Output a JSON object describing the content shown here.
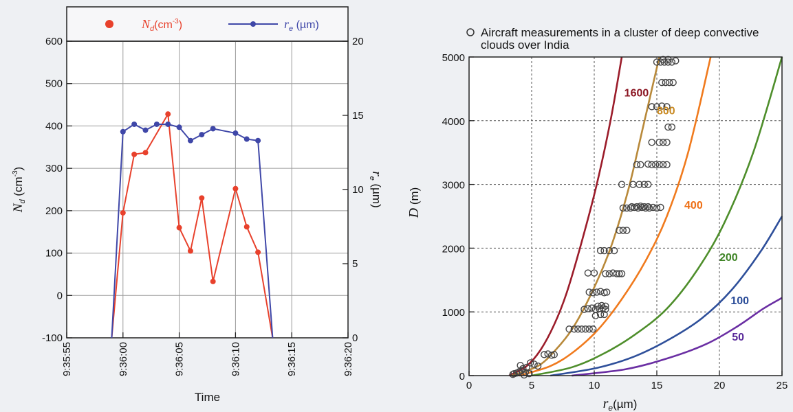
{
  "chart_data": [
    {
      "type": "line",
      "xlabel": "Time",
      "ylabel_left": "N_d (cm^-3)",
      "ylabel_left_parts": {
        "main": "N",
        "sub": "d",
        "unit": " (cm",
        "sup": "-3",
        "close": ")"
      },
      "ylabel_right": "r_e (µm)",
      "ylabel_right_parts": {
        "main": "r",
        "sub": "e",
        "unit": " (µm)"
      },
      "x_ticks": [
        "9:35:55",
        "9:36:00",
        "9:36:05",
        "9:36:10",
        "9:36:15",
        "9:36:20"
      ],
      "xlim_seconds": [
        -5,
        20
      ],
      "ylim_left": [
        -100,
        600
      ],
      "y_ticks_left": [
        "-100",
        "0",
        "100",
        "200",
        "300",
        "400",
        "500",
        "600"
      ],
      "ylim_right": [
        0,
        20
      ],
      "y_ticks_right": [
        "0",
        "5",
        "10",
        "15",
        "20"
      ],
      "grid": true,
      "legend_position": "top",
      "legend": [
        {
          "label": "N_d(cm^-3)",
          "main": "N",
          "sub": "d",
          "rest": "(cm",
          "sup": "-3",
          "close": ")"
        },
        {
          "label": "r_e (µm)",
          "main": "r",
          "sub": "e",
          "rest": " (µm)"
        }
      ],
      "series": [
        {
          "name": "N_d(cm^-3)",
          "axis": "left",
          "color": "#e8412c",
          "x": [
            -1,
            0,
            1,
            2,
            4,
            5,
            6,
            7,
            8,
            10,
            11,
            12,
            13.3
          ],
          "y": [
            -100,
            195,
            333,
            337,
            428,
            160,
            105,
            230,
            33,
            252,
            162,
            102,
            -100
          ],
          "markers": [
            false,
            true,
            true,
            true,
            true,
            true,
            true,
            true,
            true,
            true,
            true,
            true,
            false
          ]
        },
        {
          "name": "r_e (µm)",
          "axis": "right",
          "color": "#3f47a8",
          "x": [
            -1,
            0,
            1,
            2,
            3,
            4,
            5,
            6,
            7,
            8,
            10,
            11,
            12,
            13.3
          ],
          "y": [
            0,
            13.9,
            14.4,
            14.0,
            14.4,
            14.4,
            14.2,
            13.3,
            13.7,
            14.1,
            13.8,
            13.4,
            13.3,
            0
          ],
          "markers": [
            false,
            true,
            true,
            true,
            true,
            true,
            true,
            true,
            true,
            true,
            true,
            true,
            true,
            false
          ]
        }
      ]
    },
    {
      "type": "scatter",
      "title": "Aircraft measurements in a cluster of deep convective clouds over India",
      "title_lines": [
        "Aircraft measurements in a cluster of deep convective",
        "clouds over India"
      ],
      "xlabel": "r_e(µm)",
      "xlabel_parts": {
        "main": "r",
        "sub": "e",
        "unit": "(µm)"
      },
      "ylabel": "D (m)",
      "ylabel_parts": {
        "main": "D",
        "unit": " (m)"
      },
      "xlim": [
        0,
        25
      ],
      "ylim": [
        0,
        5000
      ],
      "x_ticks": [
        "0",
        "5",
        "10",
        "15",
        "20",
        "25"
      ],
      "y_ticks": [
        "0",
        "1000",
        "2000",
        "3000",
        "4000",
        "5000"
      ],
      "grid": true,
      "curves": [
        {
          "label": "1600",
          "color": "#9b1c2a",
          "label_color": "#8a1421",
          "label_at": [
            12.4,
            4380
          ],
          "points": [
            [
              3.2,
              0
            ],
            [
              4.6,
              150
            ],
            [
              5.7,
              400
            ],
            [
              6.8,
              800
            ],
            [
              7.8,
              1300
            ],
            [
              9.0,
              2100
            ],
            [
              10.2,
              3000
            ],
            [
              11.3,
              4000
            ],
            [
              12.2,
              5000
            ]
          ]
        },
        {
          "label": "800",
          "color": "#b8893a",
          "label_color": "#c98a22",
          "label_at": [
            15.0,
            4100
          ],
          "points": [
            [
              3.4,
              0
            ],
            [
              5.5,
              150
            ],
            [
              6.9,
              400
            ],
            [
              8.3,
              750
            ],
            [
              9.8,
              1300
            ],
            [
              11.3,
              2000
            ],
            [
              12.7,
              2900
            ],
            [
              13.9,
              3900
            ],
            [
              15.2,
              5000
            ]
          ]
        },
        {
          "label": "400",
          "color": "#f07a1d",
          "label_color": "#ee6f14",
          "label_at": [
            17.2,
            2620
          ],
          "points": [
            [
              4.0,
              0
            ],
            [
              6.5,
              150
            ],
            [
              8.4,
              380
            ],
            [
              10.3,
              720
            ],
            [
              12.2,
              1200
            ],
            [
              14.1,
              1800
            ],
            [
              15.8,
              2500
            ],
            [
              17.5,
              3500
            ],
            [
              19.3,
              5000
            ]
          ]
        },
        {
          "label": "200",
          "color": "#4e8e2b",
          "label_color": "#3e8425",
          "label_at": [
            20.0,
            1800
          ],
          "points": [
            [
              5.0,
              0
            ],
            [
              8.2,
              130
            ],
            [
              10.8,
              350
            ],
            [
              13.3,
              650
            ],
            [
              15.8,
              1050
            ],
            [
              18.2,
              1650
            ],
            [
              20.4,
              2400
            ],
            [
              22.7,
              3500
            ],
            [
              25.0,
              5000
            ]
          ]
        },
        {
          "label": "100",
          "color": "#2e4f9a",
          "label_color": "#2a4c98",
          "label_at": [
            20.9,
            1120
          ],
          "points": [
            [
              6.5,
              0
            ],
            [
              10.2,
              120
            ],
            [
              13.2,
              300
            ],
            [
              16.0,
              570
            ],
            [
              18.6,
              900
            ],
            [
              21.0,
              1350
            ],
            [
              23.3,
              1950
            ],
            [
              25.0,
              2500
            ]
          ]
        },
        {
          "label": "50",
          "color": "#6a2ea3",
          "label_color": "#5a2a9a",
          "label_at": [
            21.0,
            550
          ],
          "points": [
            [
              8.2,
              0
            ],
            [
              12.5,
              100
            ],
            [
              16.0,
              280
            ],
            [
              19.0,
              500
            ],
            [
              21.5,
              780
            ],
            [
              23.5,
              1050
            ],
            [
              25.0,
              1220
            ]
          ]
        }
      ],
      "points": [
        [
          3.5,
          20
        ],
        [
          3.8,
          40
        ],
        [
          4.0,
          60
        ],
        [
          4.2,
          80
        ],
        [
          4.5,
          50
        ],
        [
          4.8,
          30
        ],
        [
          4.3,
          110
        ],
        [
          4.6,
          130
        ],
        [
          4.1,
          160
        ],
        [
          5.2,
          180
        ],
        [
          4.9,
          200
        ],
        [
          5.5,
          150
        ],
        [
          3.6,
          30
        ],
        [
          4.4,
          10
        ],
        [
          6.0,
          330
        ],
        [
          6.3,
          340
        ],
        [
          6.6,
          320
        ],
        [
          6.8,
          330
        ],
        [
          8.0,
          730
        ],
        [
          8.4,
          730
        ],
        [
          8.7,
          730
        ],
        [
          9.0,
          730
        ],
        [
          9.3,
          730
        ],
        [
          9.6,
          730
        ],
        [
          9.9,
          730
        ],
        [
          9.2,
          1040
        ],
        [
          9.5,
          1050
        ],
        [
          9.8,
          1060
        ],
        [
          10.1,
          1040
        ],
        [
          10.4,
          1050
        ],
        [
          10.7,
          1060
        ],
        [
          10.9,
          1040
        ],
        [
          10.3,
          1090
        ],
        [
          10.6,
          1100
        ],
        [
          10.9,
          1090
        ],
        [
          10.1,
          940
        ],
        [
          10.5,
          960
        ],
        [
          10.8,
          960
        ],
        [
          9.6,
          1310
        ],
        [
          9.9,
          1300
        ],
        [
          10.2,
          1310
        ],
        [
          10.5,
          1320
        ],
        [
          10.8,
          1300
        ],
        [
          11.0,
          1310
        ],
        [
          9.5,
          1610
        ],
        [
          10.0,
          1610
        ],
        [
          10.9,
          1600
        ],
        [
          11.2,
          1600
        ],
        [
          11.5,
          1610
        ],
        [
          11.8,
          1600
        ],
        [
          12.0,
          1600
        ],
        [
          12.2,
          1600
        ],
        [
          10.5,
          1960
        ],
        [
          10.8,
          1960
        ],
        [
          11.2,
          1960
        ],
        [
          11.6,
          1960
        ],
        [
          12.0,
          2280
        ],
        [
          12.3,
          2280
        ],
        [
          12.6,
          2280
        ],
        [
          12.3,
          2630
        ],
        [
          12.6,
          2630
        ],
        [
          12.9,
          2630
        ],
        [
          13.2,
          2640
        ],
        [
          13.5,
          2630
        ],
        [
          13.8,
          2640
        ],
        [
          14.1,
          2630
        ],
        [
          14.4,
          2630
        ],
        [
          14.7,
          2640
        ],
        [
          15.0,
          2630
        ],
        [
          15.3,
          2640
        ],
        [
          13.0,
          2650
        ],
        [
          13.4,
          2650
        ],
        [
          13.7,
          2660
        ],
        [
          14.0,
          2650
        ],
        [
          14.3,
          2650
        ],
        [
          12.2,
          3000
        ],
        [
          13.1,
          3000
        ],
        [
          13.6,
          3000
        ],
        [
          14.0,
          3000
        ],
        [
          14.3,
          3000
        ],
        [
          13.4,
          3310
        ],
        [
          13.7,
          3310
        ],
        [
          14.3,
          3320
        ],
        [
          14.6,
          3310
        ],
        [
          14.9,
          3310
        ],
        [
          15.2,
          3310
        ],
        [
          15.5,
          3310
        ],
        [
          15.8,
          3310
        ],
        [
          14.6,
          3660
        ],
        [
          15.2,
          3660
        ],
        [
          15.5,
          3660
        ],
        [
          15.8,
          3660
        ],
        [
          15.9,
          3900
        ],
        [
          16.2,
          3900
        ],
        [
          14.6,
          4220
        ],
        [
          15.0,
          4220
        ],
        [
          15.4,
          4230
        ],
        [
          15.8,
          4220
        ],
        [
          15.4,
          4600
        ],
        [
          15.7,
          4600
        ],
        [
          16.0,
          4600
        ],
        [
          16.3,
          4600
        ],
        [
          15.0,
          4920
        ],
        [
          15.3,
          4920
        ],
        [
          15.6,
          4920
        ],
        [
          15.9,
          4920
        ],
        [
          16.2,
          4920
        ],
        [
          16.5,
          4940
        ],
        [
          15.5,
          4960
        ],
        [
          15.9,
          4960
        ]
      ]
    }
  ]
}
